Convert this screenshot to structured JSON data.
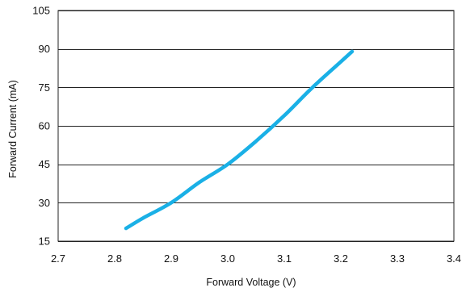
{
  "chart_data": {
    "type": "line",
    "title": "",
    "xlabel": "Forward Voltage (V)",
    "ylabel": "Forward Current (mA)",
    "xlim": [
      2.7,
      3.4
    ],
    "ylim": [
      15,
      105
    ],
    "x_ticks": [
      "2.7",
      "2.8",
      "2.9",
      "3.0",
      "3.1",
      "3.2",
      "3.3",
      "3.4"
    ],
    "y_ticks": [
      "105",
      "90",
      "75",
      "60",
      "45",
      "30",
      "15"
    ],
    "grid": {
      "horizontal": true,
      "vertical": false
    },
    "legend": "none",
    "series": [
      {
        "color": "#1ab0e6",
        "x": [
          2.82,
          2.85,
          2.9,
          2.95,
          3.0,
          3.05,
          3.1,
          3.15,
          3.2,
          3.22
        ],
        "y": [
          20,
          24,
          30,
          38,
          45,
          54,
          64,
          75,
          85,
          89
        ]
      }
    ],
    "colors": {
      "line": "#1ab0e6",
      "grid": "#222222",
      "border": "#222222",
      "text": "#111111"
    }
  }
}
